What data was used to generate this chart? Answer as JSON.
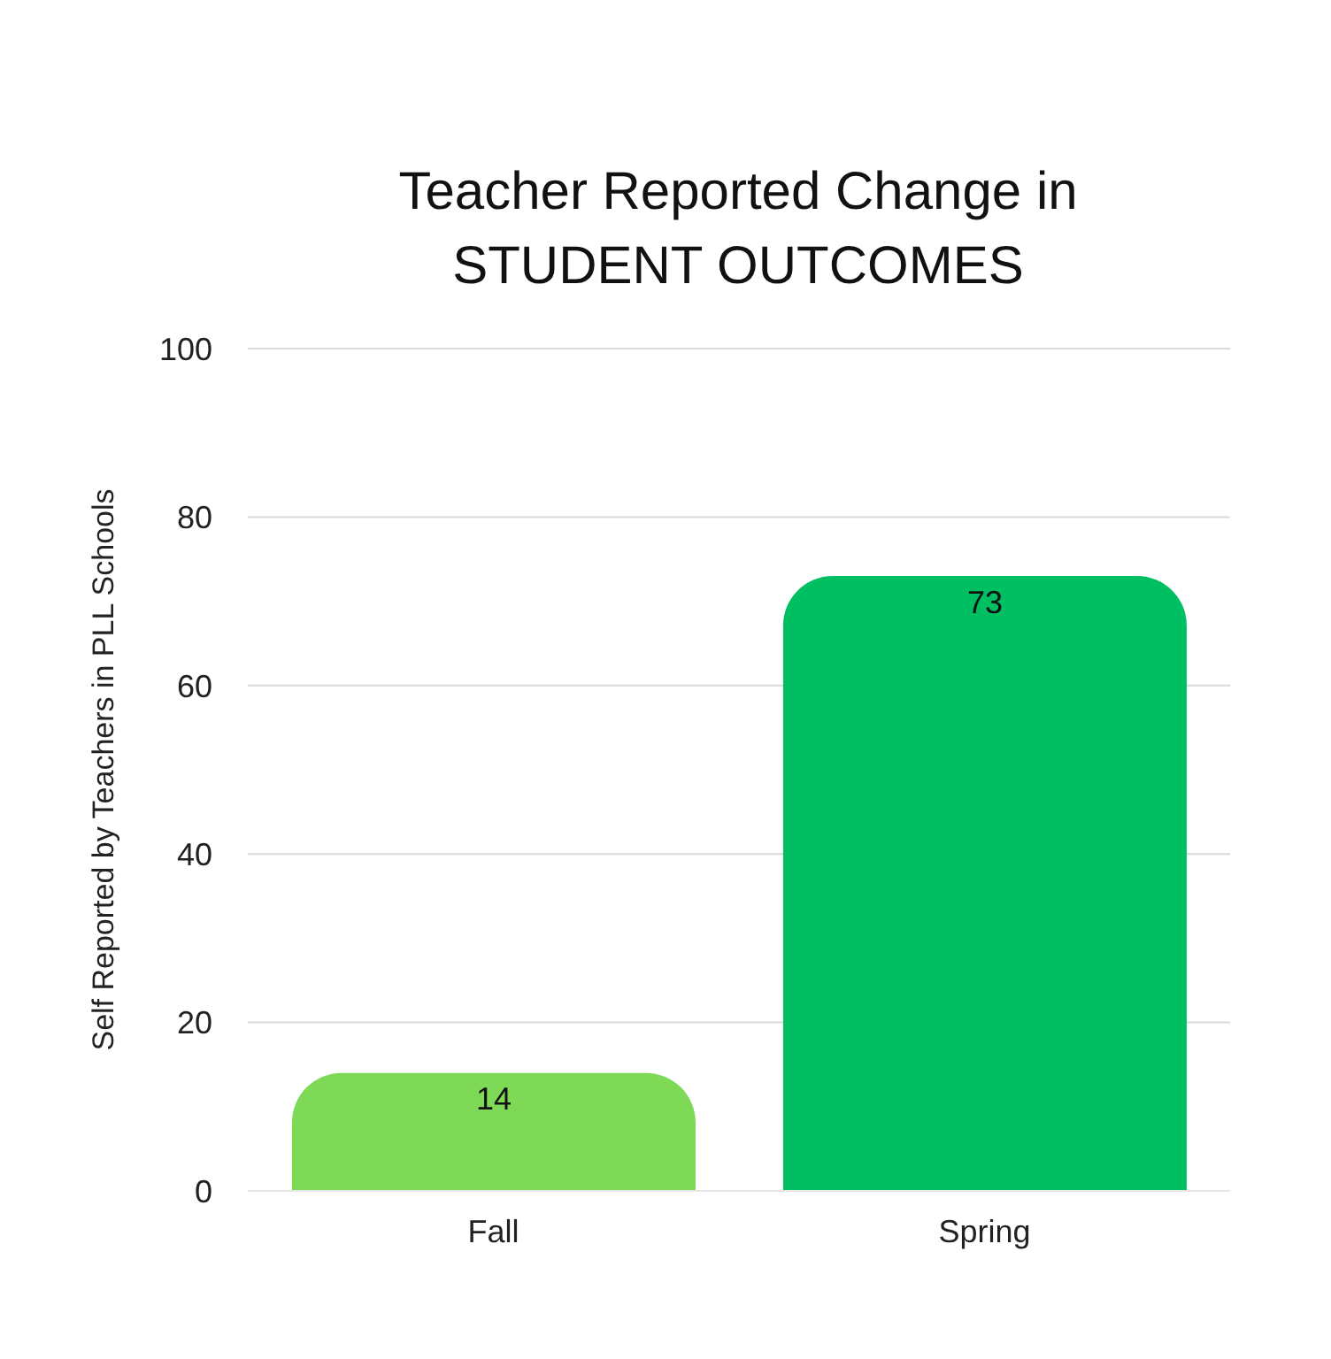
{
  "chart_data": {
    "type": "bar",
    "title": "Teacher Reported Change in STUDENT OUTCOMES",
    "ylabel": "Self Reported by Teachers in PLL Schools",
    "categories": [
      "Fall",
      "Spring"
    ],
    "values": [
      14,
      73
    ],
    "colors": [
      "#7ed957",
      "#00bf63"
    ],
    "ylim": [
      0,
      100
    ],
    "yticks": [
      0,
      20,
      40,
      60,
      80,
      100
    ],
    "grid": "y",
    "data_labels": true,
    "legend": false
  }
}
